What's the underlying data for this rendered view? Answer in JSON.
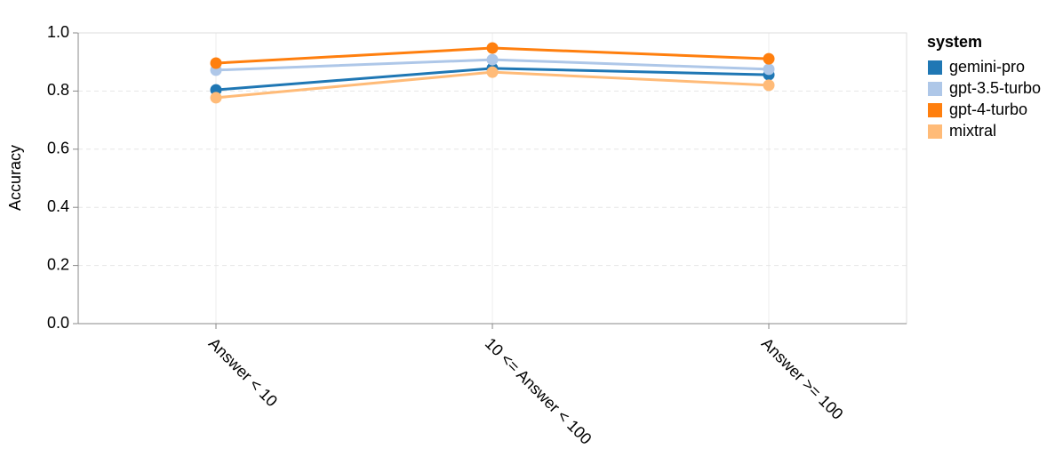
{
  "chart_data": {
    "type": "line",
    "y_label": "Accuracy",
    "categories": [
      "Answer < 10",
      "10 <= Answer < 100",
      "Answer >= 100"
    ],
    "series": [
      {
        "name": "gemini-pro",
        "color": "#1f77b4",
        "values": [
          0.804,
          0.878,
          0.856
        ]
      },
      {
        "name": "gpt-3.5-turbo",
        "color": "#aec7e8",
        "values": [
          0.872,
          0.908,
          0.875
        ]
      },
      {
        "name": "gpt-4-turbo",
        "color": "#ff7f0e",
        "values": [
          0.896,
          0.948,
          0.911
        ]
      },
      {
        "name": "mixtral",
        "color": "#ffbb78",
        "values": [
          0.777,
          0.865,
          0.82
        ]
      }
    ],
    "ylim": [
      0,
      1
    ],
    "yticks": [
      {
        "value": 0,
        "label": "0.0"
      },
      {
        "value": 0.2,
        "label": "0.2"
      },
      {
        "value": 0.4,
        "label": "0.4"
      },
      {
        "value": 0.6,
        "label": "0.6"
      },
      {
        "value": 0.8,
        "label": "0.8"
      },
      {
        "value": 1,
        "label": "1.0"
      }
    ],
    "grid": true,
    "legend_title": "system",
    "legend_position": "right"
  }
}
